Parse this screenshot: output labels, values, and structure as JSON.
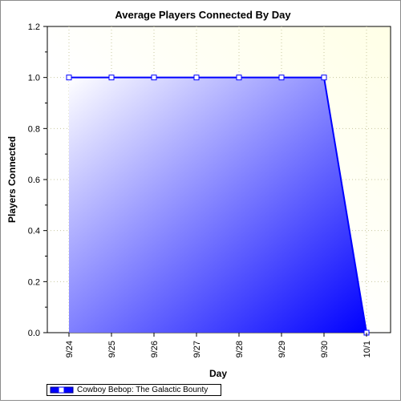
{
  "chart_data": {
    "type": "area",
    "title": "Average Players Connected By Day",
    "xlabel": "Day",
    "ylabel": "Players Connected",
    "categories": [
      "9/24",
      "9/25",
      "9/26",
      "9/27",
      "9/28",
      "9/29",
      "9/30",
      "10/1"
    ],
    "series": [
      {
        "name": "Cowboy Bebop: The Galactic Bounty",
        "values": [
          1.0,
          1.0,
          1.0,
          1.0,
          1.0,
          1.0,
          1.0,
          0.0
        ]
      }
    ],
    "ylim": [
      0,
      1.2
    ],
    "yticks": [
      "0.0",
      "0.2",
      "0.4",
      "0.6",
      "0.8",
      "1.0",
      "1.2"
    ],
    "grid": true,
    "legend_position": "bottom-left",
    "colors": {
      "line": "#0000ff",
      "fill_start": "#ffffff",
      "fill_end": "#0000ff",
      "plot_background": "#ffffe6",
      "grid": "#c8c8a0"
    }
  }
}
